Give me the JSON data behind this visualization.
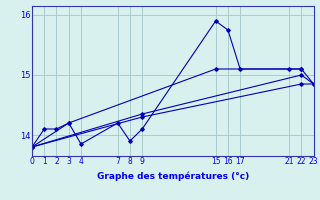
{
  "xlabel": "Graphe des températures (°c)",
  "background_color": "#d8f0ee",
  "grid_color": "#aacccc",
  "line_color": "#0000bb",
  "series_main": {
    "x": [
      0,
      1,
      2,
      3,
      4,
      7,
      8,
      9,
      15,
      16,
      17,
      21,
      22,
      23
    ],
    "y": [
      13.8,
      14.1,
      14.1,
      14.2,
      13.85,
      14.2,
      13.9,
      14.1,
      15.9,
      15.75,
      15.1,
      15.1,
      15.1,
      14.85
    ]
  },
  "series_trend1": {
    "x": [
      0,
      3,
      15,
      22
    ],
    "y": [
      13.8,
      14.2,
      15.1,
      15.1
    ]
  },
  "series_trend2": {
    "x": [
      0,
      9,
      22,
      23
    ],
    "y": [
      13.8,
      14.35,
      15.0,
      14.85
    ]
  },
  "series_trend3": {
    "x": [
      0,
      9,
      22,
      23
    ],
    "y": [
      13.8,
      14.3,
      14.85,
      14.85
    ]
  },
  "xticks": [
    0,
    1,
    2,
    3,
    4,
    7,
    8,
    9,
    15,
    16,
    17,
    21,
    22,
    23
  ],
  "xlim": [
    0,
    23
  ],
  "ylim": [
    13.65,
    16.15
  ],
  "yticks": [
    14,
    15,
    16
  ],
  "xlabel_fontsize": 6.5,
  "tick_fontsize": 5.5
}
